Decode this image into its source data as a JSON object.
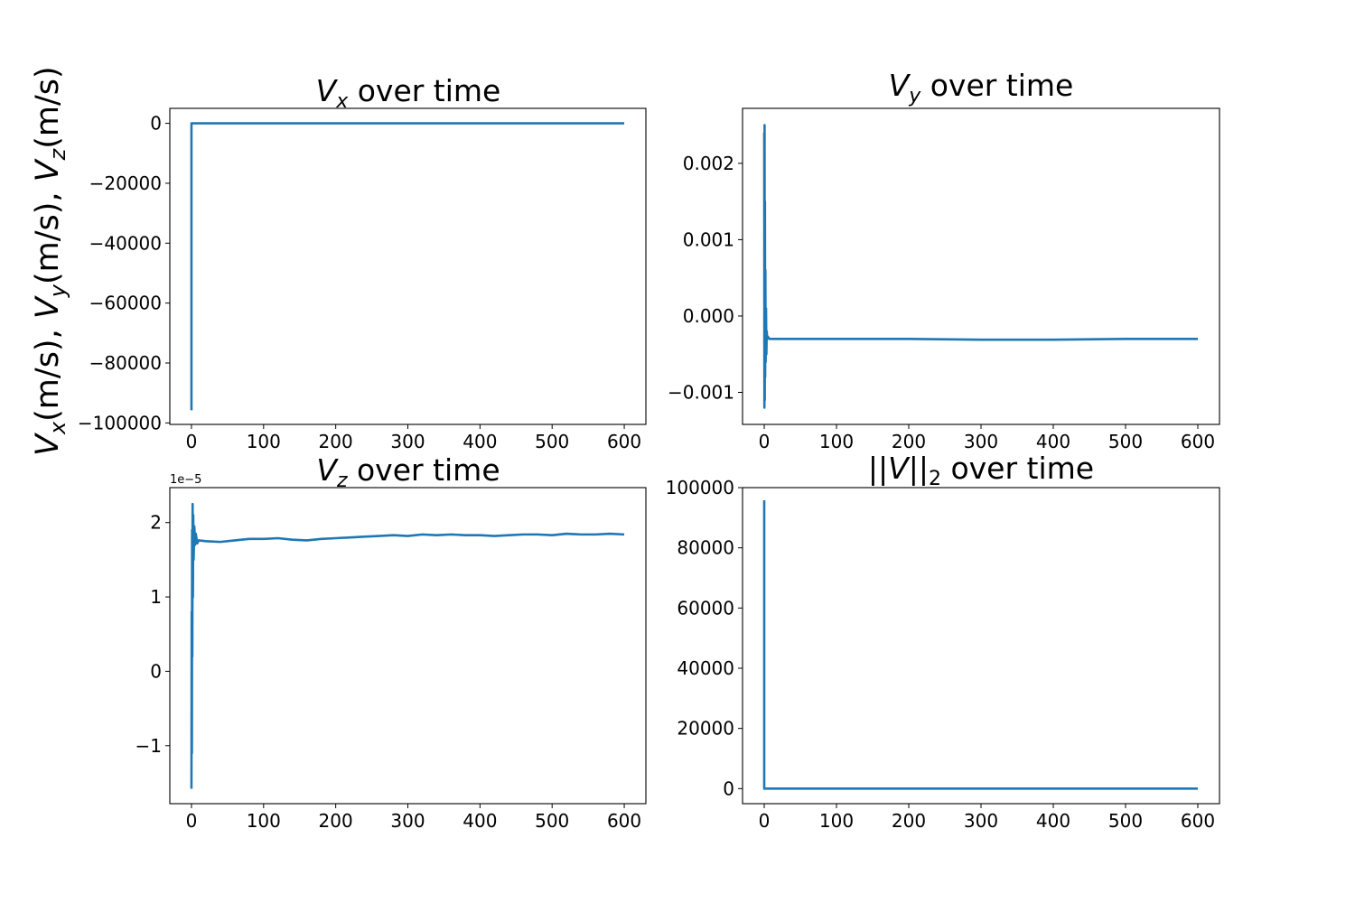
{
  "figure": {
    "ylabel_parts": [
      "V",
      "x",
      "(m/s), ",
      "V",
      "y",
      "(m/s), ",
      "V",
      "z",
      "(m/s)"
    ]
  },
  "chart_data": [
    {
      "type": "line",
      "title_main": "V",
      "title_sub": "x",
      "title_rest": " over time",
      "xlim": [
        -30,
        630
      ],
      "ylim": [
        -100500,
        5000
      ],
      "xticks": [
        0,
        100,
        200,
        300,
        400,
        500,
        600
      ],
      "xtick_labels": [
        "0",
        "100",
        "200",
        "300",
        "400",
        "500",
        "600"
      ],
      "yticks": [
        0,
        -20000,
        -40000,
        -60000,
        -80000,
        -100000
      ],
      "ytick_labels": [
        "0",
        "−20000",
        "−40000",
        "−60000",
        "−80000",
        "−100000"
      ],
      "offset_text": "",
      "color": "#1f77b4",
      "series": [
        {
          "x": [
            0,
            0,
            0.3,
            2,
            600
          ],
          "y": [
            -95800,
            0,
            0,
            0,
            0
          ]
        }
      ]
    },
    {
      "type": "line",
      "title_main": "V",
      "title_sub": "y",
      "title_rest": " over time",
      "xlim": [
        -30,
        630
      ],
      "ylim": [
        -0.00142,
        0.00272
      ],
      "xticks": [
        0,
        100,
        200,
        300,
        400,
        500,
        600
      ],
      "xtick_labels": [
        "0",
        "100",
        "200",
        "300",
        "400",
        "500",
        "600"
      ],
      "yticks": [
        0.002,
        0.001,
        0.0,
        -0.001
      ],
      "ytick_labels": [
        "0.002",
        "0.001",
        "0.000",
        "−0.001"
      ],
      "offset_text": "",
      "color": "#1f77b4",
      "series": [
        {
          "x": [
            0,
            0.25,
            0.5,
            0.75,
            1.0,
            1.3,
            1.6,
            2.0,
            2.5,
            3.0,
            3.5,
            4,
            5,
            7,
            10,
            50,
            100,
            200,
            300,
            400,
            500,
            600
          ],
          "y": [
            0.0024,
            -0.0012,
            0.0025,
            -0.0011,
            0.0015,
            -0.0008,
            0.0006,
            -0.0006,
            0.0001,
            -0.0005,
            -0.0002,
            -0.0003,
            -0.00027,
            -0.0003,
            -0.0003,
            -0.0003,
            -0.0003,
            -0.0003,
            -0.00031,
            -0.00031,
            -0.0003,
            -0.0003
          ]
        }
      ]
    },
    {
      "type": "line",
      "title_main": "V",
      "title_sub": "z",
      "title_rest": " over time",
      "xlim": [
        -30,
        630
      ],
      "ylim": [
        -1.78e-05,
        2.47e-05
      ],
      "xticks": [
        0,
        100,
        200,
        300,
        400,
        500,
        600
      ],
      "xtick_labels": [
        "0",
        "100",
        "200",
        "300",
        "400",
        "500",
        "600"
      ],
      "yticks": [
        2e-05,
        1e-05,
        0,
        -1e-05
      ],
      "ytick_labels": [
        "2",
        "1",
        "0",
        "−1"
      ],
      "offset_text": "1e−5",
      "color": "#1f77b4",
      "series": [
        {
          "x": [
            0,
            0.3,
            0.6,
            0.9,
            1.2,
            1.6,
            2.0,
            2.5,
            3,
            4,
            5,
            6,
            8,
            10,
            20,
            40,
            60,
            80,
            100,
            120,
            140,
            160,
            180,
            200,
            220,
            240,
            260,
            280,
            300,
            320,
            340,
            360,
            380,
            400,
            420,
            440,
            460,
            480,
            500,
            520,
            540,
            560,
            580,
            600
          ],
          "y": [
            -1.58e-05,
            8e-06,
            -1.1e-05,
            1.9e-05,
            2e-06,
            2.25e-05,
            1e-05,
            2.1e-05,
            1.5e-05,
            1.95e-05,
            1.7e-05,
            1.85e-05,
            1.72e-05,
            1.76e-05,
            1.75e-05,
            1.74e-05,
            1.76e-05,
            1.78e-05,
            1.78e-05,
            1.79e-05,
            1.77e-05,
            1.76e-05,
            1.78e-05,
            1.79e-05,
            1.8e-05,
            1.81e-05,
            1.82e-05,
            1.83e-05,
            1.82e-05,
            1.84e-05,
            1.83e-05,
            1.84e-05,
            1.83e-05,
            1.83e-05,
            1.82e-05,
            1.83e-05,
            1.84e-05,
            1.84e-05,
            1.83e-05,
            1.85e-05,
            1.84e-05,
            1.84e-05,
            1.85e-05,
            1.84e-05
          ]
        }
      ]
    },
    {
      "type": "line",
      "title_main": "||V||",
      "title_sub": "2",
      "title_rest": " over time",
      "xlim": [
        -30,
        630
      ],
      "ylim": [
        -5000,
        100000
      ],
      "xticks": [
        0,
        100,
        200,
        300,
        400,
        500,
        600
      ],
      "xtick_labels": [
        "0",
        "100",
        "200",
        "300",
        "400",
        "500",
        "600"
      ],
      "yticks": [
        100000,
        80000,
        60000,
        40000,
        20000,
        0
      ],
      "ytick_labels": [
        "100000",
        "80000",
        "60000",
        "40000",
        "20000",
        "0"
      ],
      "offset_text": "",
      "color": "#1f77b4",
      "series": [
        {
          "x": [
            0,
            0,
            0.3,
            2,
            600
          ],
          "y": [
            95800,
            0,
            0,
            0,
            0
          ]
        }
      ]
    }
  ]
}
